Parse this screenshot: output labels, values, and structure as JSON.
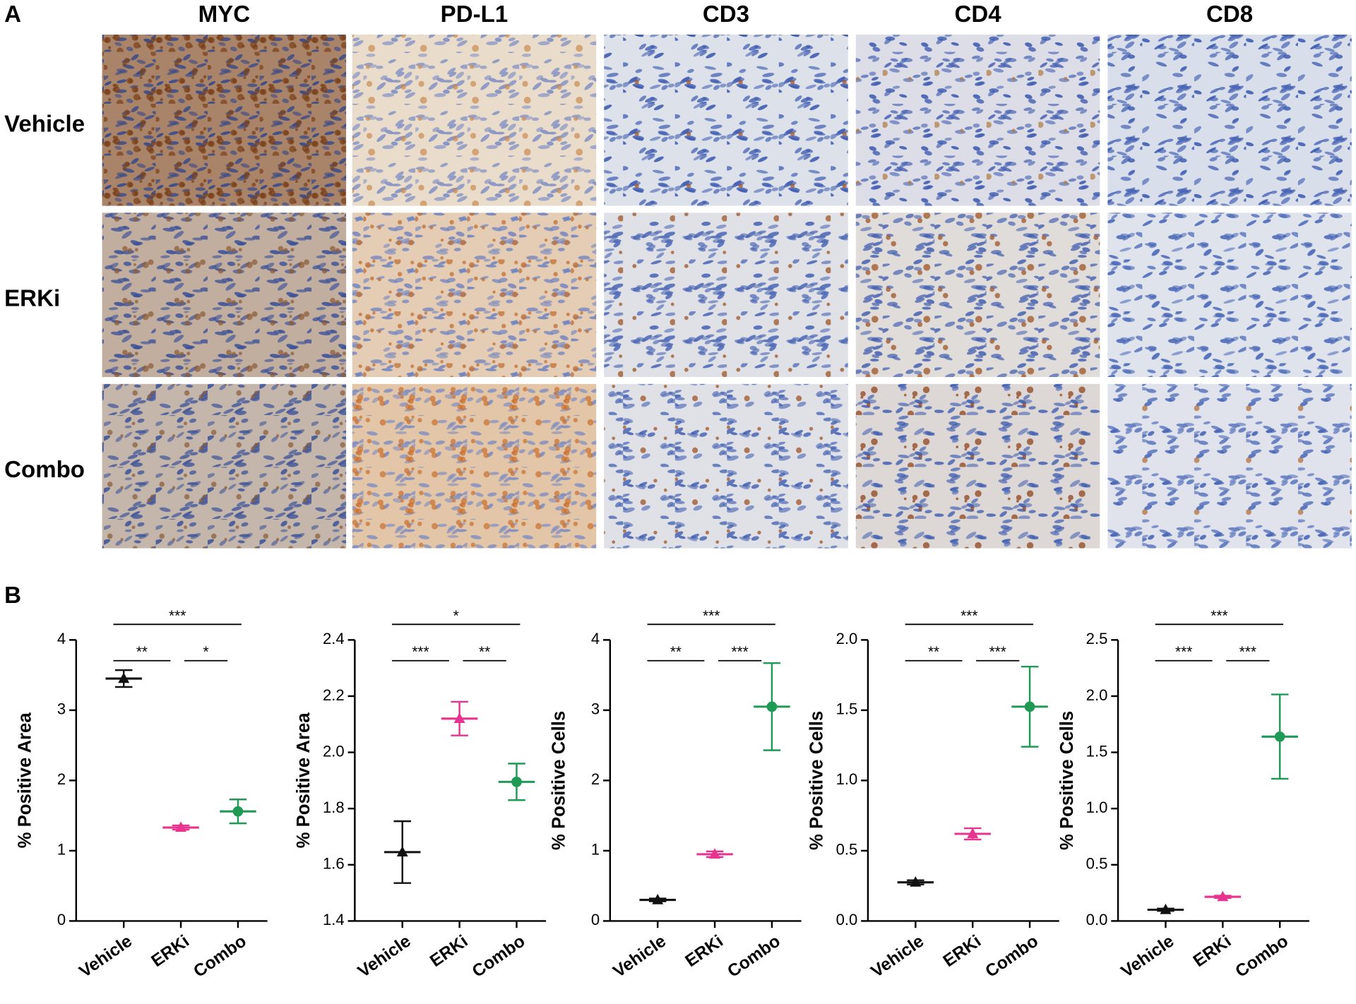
{
  "panel_a": {
    "label": "A",
    "columns": [
      "MYC",
      "PD-L1",
      "CD3",
      "CD4",
      "CD8"
    ],
    "rows": [
      "Vehicle",
      "ERKi",
      "Combo"
    ]
  },
  "panel_b": {
    "label": "B"
  },
  "chart_data": [
    {
      "type": "errorbar",
      "ylabel": "% Positive Area",
      "categories": [
        "Vehicle",
        "ERKi",
        "Combo"
      ],
      "values": [
        3.45,
        1.33,
        1.56
      ],
      "errors": [
        0.12,
        0.03,
        0.17
      ],
      "colors": [
        "#111111",
        "#e8338f",
        "#1f9a55"
      ],
      "markers": [
        "triangle",
        "triangle",
        "circle"
      ],
      "ylim": [
        0,
        4
      ],
      "yticks": [
        0,
        1,
        2,
        3,
        4
      ],
      "comparisons": [
        {
          "from": "Vehicle",
          "to": "Combo",
          "label": "***"
        },
        {
          "from": "Vehicle",
          "to": "ERKi",
          "label": "**"
        },
        {
          "from": "ERKi",
          "to": "Combo",
          "label": "*"
        }
      ]
    },
    {
      "type": "errorbar",
      "ylabel": "% Positive Area",
      "categories": [
        "Vehicle",
        "ERKi",
        "Combo"
      ],
      "values": [
        1.645,
        2.12,
        1.895
      ],
      "errors": [
        0.11,
        0.06,
        0.065
      ],
      "colors": [
        "#111111",
        "#e8338f",
        "#1f9a55"
      ],
      "markers": [
        "triangle",
        "triangle",
        "circle"
      ],
      "ylim": [
        1.4,
        2.4
      ],
      "yticks": [
        1.4,
        1.6,
        1.8,
        {
          "value": 2,
          "label": "2.0"
        },
        2.2,
        2.4
      ],
      "comparisons": [
        {
          "from": "Vehicle",
          "to": "Combo",
          "label": "*"
        },
        {
          "from": "Vehicle",
          "to": "ERKi",
          "label": "***"
        },
        {
          "from": "ERKi",
          "to": "Combo",
          "label": "**"
        }
      ]
    },
    {
      "type": "errorbar",
      "ylabel": "% Positive Cells",
      "categories": [
        "Vehicle",
        "ERKi",
        "Combo"
      ],
      "values": [
        0.3,
        0.95,
        3.05
      ],
      "errors": [
        0.02,
        0.04,
        0.62
      ],
      "colors": [
        "#111111",
        "#e8338f",
        "#1f9a55"
      ],
      "markers": [
        "triangle",
        "triangle",
        "circle"
      ],
      "ylim": [
        0,
        4
      ],
      "yticks": [
        0,
        1,
        2,
        3,
        4
      ],
      "comparisons": [
        {
          "from": "Vehicle",
          "to": "Combo",
          "label": "***"
        },
        {
          "from": "Vehicle",
          "to": "ERKi",
          "label": "**"
        },
        {
          "from": "ERKi",
          "to": "Combo",
          "label": "***"
        }
      ]
    },
    {
      "type": "errorbar",
      "ylabel": "% Positive Cells",
      "categories": [
        "Vehicle",
        "ERKi",
        "Combo"
      ],
      "values": [
        0.275,
        0.62,
        1.525
      ],
      "errors": [
        0.015,
        0.04,
        0.285
      ],
      "colors": [
        "#111111",
        "#e8338f",
        "#1f9a55"
      ],
      "markers": [
        "triangle",
        "triangle",
        "circle"
      ],
      "ylim": [
        0,
        2
      ],
      "yticks": [
        {
          "value": 0,
          "label": "0.0"
        },
        0.5,
        {
          "value": 1,
          "label": "1.0"
        },
        1.5,
        {
          "value": 2,
          "label": "2.0"
        }
      ],
      "comparisons": [
        {
          "from": "Vehicle",
          "to": "Combo",
          "label": "***"
        },
        {
          "from": "Vehicle",
          "to": "ERKi",
          "label": "**"
        },
        {
          "from": "ERKi",
          "to": "Combo",
          "label": "***"
        }
      ]
    },
    {
      "type": "errorbar",
      "ylabel": "% Positive Cells",
      "categories": [
        "Vehicle",
        "ERKi",
        "Combo"
      ],
      "values": [
        0.1,
        0.215,
        1.64
      ],
      "errors": [
        0.01,
        0.01,
        0.375
      ],
      "colors": [
        "#111111",
        "#e8338f",
        "#1f9a55"
      ],
      "markers": [
        "triangle",
        "triangle",
        "circle"
      ],
      "ylim": [
        0,
        2.5
      ],
      "yticks": [
        {
          "value": 0,
          "label": "0.0"
        },
        0.5,
        {
          "value": 1,
          "label": "1.0"
        },
        1.5,
        {
          "value": 2,
          "label": "2.0"
        },
        2.5
      ],
      "comparisons": [
        {
          "from": "Vehicle",
          "to": "Combo",
          "label": "***"
        },
        {
          "from": "Vehicle",
          "to": "ERKi",
          "label": "***"
        },
        {
          "from": "ERKi",
          "to": "Combo",
          "label": "***"
        }
      ]
    }
  ]
}
